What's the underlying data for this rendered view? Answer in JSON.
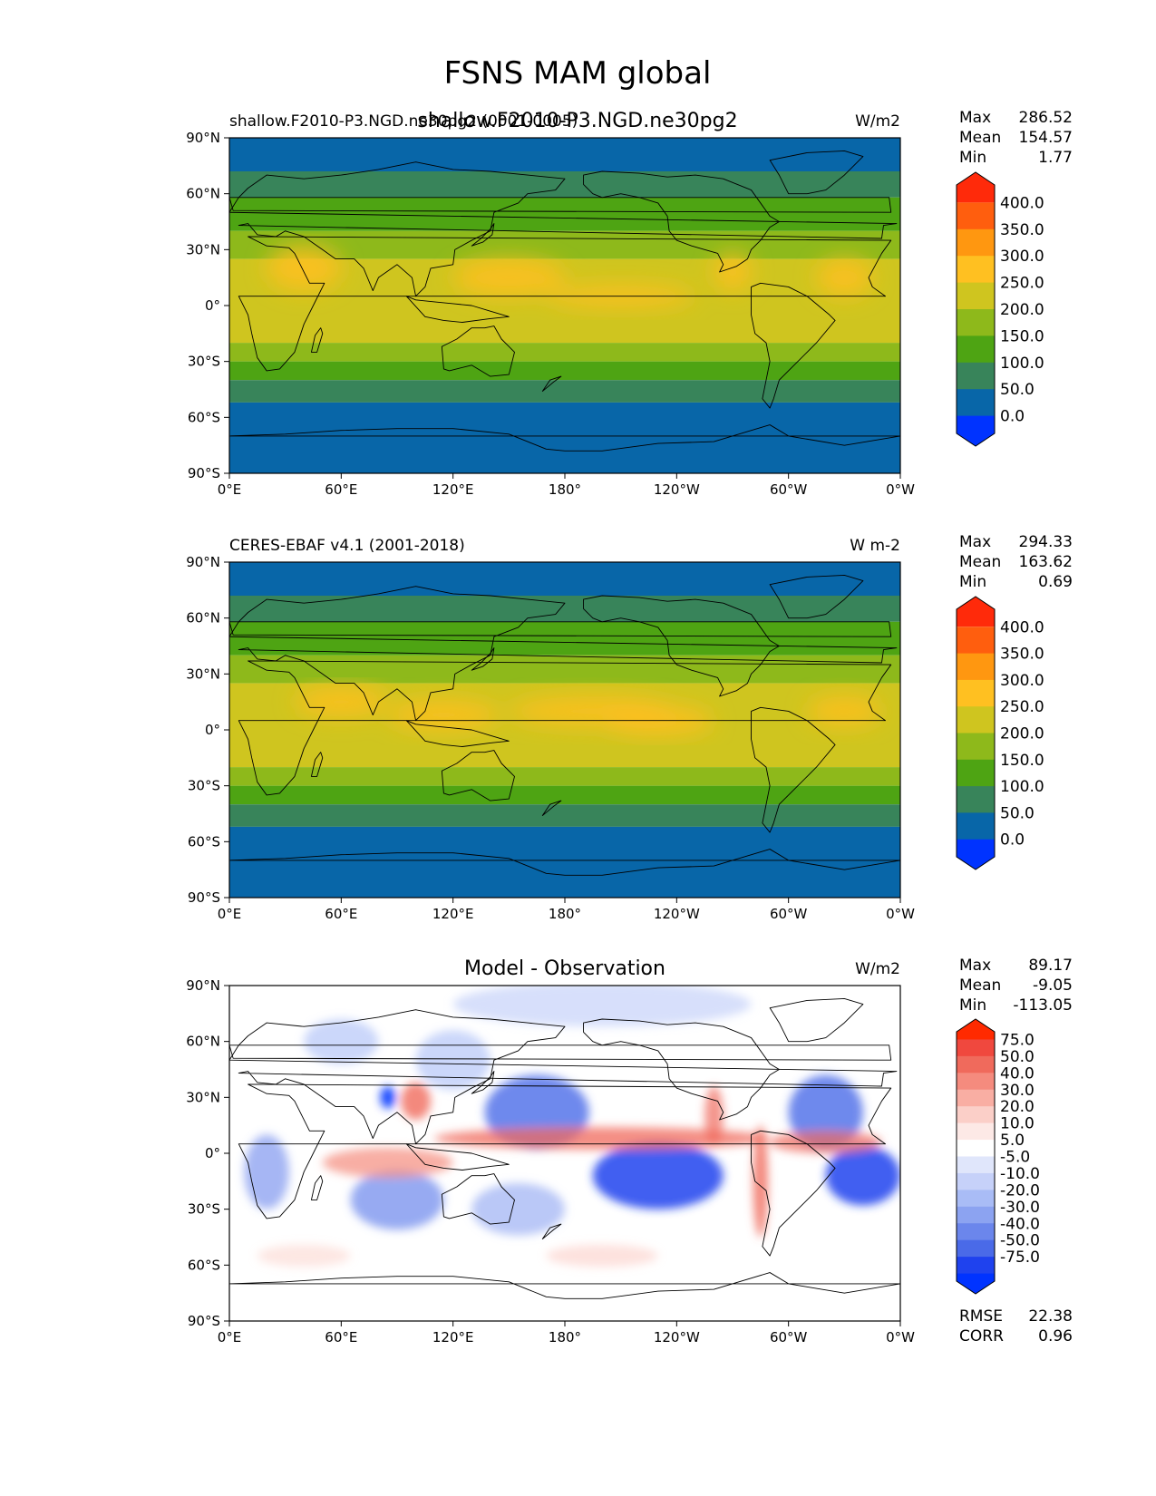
{
  "figure_title": "FSNS MAM global",
  "overlay_subtitle": "shallow.F2010-P3.NGD.ne30pg2",
  "panels": [
    {
      "id": "model",
      "left_title": "shallow.F2010-P3.NGD.ne30pg2 (0001-0005)",
      "center_title": "",
      "units": "W/m2",
      "stats": {
        "max_label": "Max",
        "max": "286.52",
        "mean_label": "Mean",
        "mean": "154.57",
        "min_label": "Min",
        "min": "1.77"
      },
      "colorbar": {
        "ticks": [
          "400.0",
          "350.0",
          "300.0",
          "250.0",
          "200.0",
          "150.0",
          "100.0",
          "50.0",
          "0.0"
        ],
        "colors": [
          "#ff2a0a",
          "#ff5e0e",
          "#ff9710",
          "#ffc021",
          "#cfc51f",
          "#8eb91b",
          "#4ea413",
          "#38845a",
          "#0866a8",
          "#0033ff"
        ]
      }
    },
    {
      "id": "obs",
      "left_title": "CERES-EBAF v4.1 (2001-2018)",
      "center_title": "",
      "units": "W m-2",
      "stats": {
        "max_label": "Max",
        "max": "294.33",
        "mean_label": "Mean",
        "mean": "163.62",
        "min_label": "Min",
        "min": "0.69"
      },
      "colorbar": {
        "ticks": [
          "400.0",
          "350.0",
          "300.0",
          "250.0",
          "200.0",
          "150.0",
          "100.0",
          "50.0",
          "0.0"
        ],
        "colors": [
          "#ff2a0a",
          "#ff5e0e",
          "#ff9710",
          "#ffc021",
          "#cfc51f",
          "#8eb91b",
          "#4ea413",
          "#38845a",
          "#0866a8",
          "#0033ff"
        ]
      }
    },
    {
      "id": "diff",
      "left_title": "",
      "center_title": "Model - Observation",
      "units": "W/m2",
      "stats": {
        "max_label": "Max",
        "max": "89.17",
        "mean_label": "Mean",
        "mean": "-9.05",
        "min_label": "Min",
        "min": "-113.05"
      },
      "metrics": {
        "rmse_label": "RMSE",
        "rmse": "22.38",
        "corr_label": "CORR",
        "corr": "0.96"
      },
      "colorbar": {
        "ticks": [
          "75.0",
          "50.0",
          "40.0",
          "30.0",
          "20.0",
          "10.0",
          "5.0",
          "-5.0",
          "-10.0",
          "-20.0",
          "-30.0",
          "-40.0",
          "-50.0",
          "-75.0"
        ],
        "colors": [
          "#ff2a00",
          "#f0483e",
          "#f06a5c",
          "#f58b7e",
          "#f9aea3",
          "#fbcfc8",
          "#fde9e6",
          "#ffffff",
          "#e0e6fb",
          "#c6d1f9",
          "#a9bcf6",
          "#8ca3f1",
          "#6b86ec",
          "#4a6ae8",
          "#1f42ee",
          "#0033ff"
        ]
      }
    }
  ],
  "axes": {
    "lat_ticks": [
      "90°N",
      "60°N",
      "30°N",
      "0°",
      "30°S",
      "60°S",
      "90°S"
    ],
    "lon_ticks": [
      "0°E",
      "60°E",
      "120°E",
      "180°",
      "120°W",
      "60°W",
      "0°W"
    ]
  },
  "chart_data": [
    {
      "type": "heatmap",
      "title": "shallow.F2010-P3.NGD.ne30pg2 (0001-0005)",
      "units": "W/m2",
      "xlabel": "",
      "ylabel": "",
      "x_range": [
        "0°E",
        "0°W"
      ],
      "y_range": [
        "90°S",
        "90°N"
      ],
      "contour_levels": [
        0,
        50,
        100,
        150,
        200,
        250,
        300,
        350,
        400
      ],
      "zonal_mean_profile": {
        "lat": [
          90,
          75,
          60,
          45,
          30,
          15,
          0,
          -15,
          -30,
          -45,
          -60,
          -75,
          -90
        ],
        "value": [
          30,
          60,
          110,
          150,
          195,
          215,
          205,
          195,
          160,
          100,
          55,
          30,
          20
        ]
      },
      "stats": {
        "max": 286.52,
        "mean": 154.57,
        "min": 1.77
      }
    },
    {
      "type": "heatmap",
      "title": "CERES-EBAF v4.1 (2001-2018)",
      "units": "W m-2",
      "xlabel": "",
      "ylabel": "",
      "x_range": [
        "0°E",
        "0°W"
      ],
      "y_range": [
        "90°S",
        "90°N"
      ],
      "contour_levels": [
        0,
        50,
        100,
        150,
        200,
        250,
        300,
        350,
        400
      ],
      "zonal_mean_profile": {
        "lat": [
          90,
          75,
          60,
          45,
          30,
          15,
          0,
          -15,
          -30,
          -45,
          -60,
          -75,
          -90
        ],
        "value": [
          30,
          70,
          115,
          160,
          215,
          235,
          225,
          210,
          175,
          110,
          60,
          30,
          20
        ]
      },
      "stats": {
        "max": 294.33,
        "mean": 163.62,
        "min": 0.69
      }
    },
    {
      "type": "heatmap",
      "title": "Model - Observation",
      "units": "W/m2",
      "xlabel": "",
      "ylabel": "",
      "x_range": [
        "0°E",
        "0°W"
      ],
      "y_range": [
        "90°S",
        "90°N"
      ],
      "contour_levels": [
        -75,
        -50,
        -40,
        -30,
        -20,
        -10,
        -5,
        5,
        10,
        20,
        30,
        40,
        50,
        75
      ],
      "zonal_mean_profile": {
        "lat": [
          90,
          75,
          60,
          45,
          30,
          15,
          0,
          -15,
          -30,
          -45,
          -60,
          -75,
          -90
        ],
        "value": [
          -10,
          -8,
          -5,
          -12,
          -20,
          -25,
          10,
          -30,
          -18,
          -10,
          5,
          0,
          0
        ]
      },
      "stats": {
        "max": 89.17,
        "mean": -9.05,
        "min": -113.05,
        "rmse": 22.38,
        "corr": 0.96
      }
    }
  ]
}
